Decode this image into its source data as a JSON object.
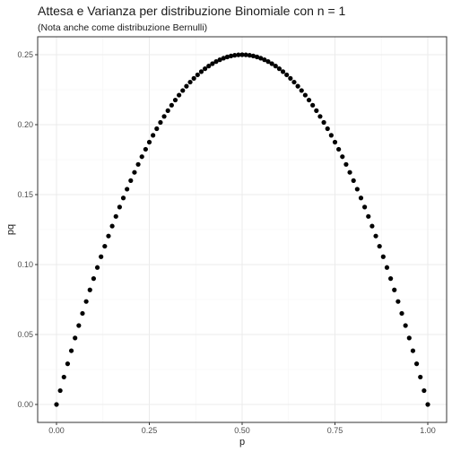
{
  "chart_data": {
    "type": "scatter",
    "title": "Attesa e Varianza per distribuzione Binomiale con n = 1",
    "subtitle": "(Nota anche come distribuzione Bernulli)",
    "xlabel": "p",
    "ylabel": "pq",
    "xlim": [
      0,
      1
    ],
    "ylim": [
      0,
      0.25
    ],
    "x_ticks": [
      "0.00",
      "0.25",
      "0.50",
      "0.75",
      "1.00"
    ],
    "y_ticks": [
      "0.00",
      "0.05",
      "0.10",
      "0.15",
      "0.20",
      "0.25"
    ],
    "grid": true,
    "point_color": "#000000",
    "series": [
      {
        "function": "p*(1-p)",
        "x": [
          0.0,
          0.01,
          0.02,
          0.03,
          0.04,
          0.05,
          0.06,
          0.07,
          0.08,
          0.09,
          0.1,
          0.11,
          0.12,
          0.13,
          0.14,
          0.15,
          0.16,
          0.17,
          0.18,
          0.19,
          0.2,
          0.21,
          0.22,
          0.23,
          0.24,
          0.25,
          0.26,
          0.27,
          0.28,
          0.29,
          0.3,
          0.31,
          0.32,
          0.33,
          0.34,
          0.35,
          0.36,
          0.37,
          0.38,
          0.39,
          0.4,
          0.41,
          0.42,
          0.43,
          0.44,
          0.45,
          0.46,
          0.47,
          0.48,
          0.49,
          0.5,
          0.51,
          0.52,
          0.53,
          0.54,
          0.55,
          0.56,
          0.57,
          0.58,
          0.59,
          0.6,
          0.61,
          0.62,
          0.63,
          0.64,
          0.65,
          0.66,
          0.67,
          0.68,
          0.69,
          0.7,
          0.71,
          0.72,
          0.73,
          0.74,
          0.75,
          0.76,
          0.77,
          0.78,
          0.79,
          0.8,
          0.81,
          0.82,
          0.83,
          0.84,
          0.85,
          0.86,
          0.87,
          0.88,
          0.89,
          0.9,
          0.91,
          0.92,
          0.93,
          0.94,
          0.95,
          0.96,
          0.97,
          0.98,
          0.99,
          1.0
        ],
        "y": [
          0.0,
          0.0099,
          0.0196,
          0.0291,
          0.0384,
          0.0475,
          0.0564,
          0.0651,
          0.0736,
          0.0819,
          0.09,
          0.0979,
          0.1056,
          0.1131,
          0.1204,
          0.1275,
          0.1344,
          0.1411,
          0.1476,
          0.1539,
          0.16,
          0.1659,
          0.1716,
          0.1771,
          0.1824,
          0.1875,
          0.1924,
          0.1971,
          0.2016,
          0.2059,
          0.21,
          0.2139,
          0.2176,
          0.2211,
          0.2244,
          0.2275,
          0.2304,
          0.2331,
          0.2356,
          0.2379,
          0.24,
          0.2419,
          0.2436,
          0.2451,
          0.2464,
          0.2475,
          0.2484,
          0.2491,
          0.2496,
          0.2499,
          0.25,
          0.2499,
          0.2496,
          0.2491,
          0.2484,
          0.2475,
          0.2464,
          0.2451,
          0.2436,
          0.2419,
          0.24,
          0.2379,
          0.2356,
          0.2331,
          0.2304,
          0.2275,
          0.2244,
          0.2211,
          0.2176,
          0.2139,
          0.21,
          0.2059,
          0.2016,
          0.1971,
          0.1924,
          0.1875,
          0.1824,
          0.1771,
          0.1716,
          0.1659,
          0.16,
          0.1539,
          0.1476,
          0.1411,
          0.1344,
          0.1275,
          0.1204,
          0.1131,
          0.1056,
          0.0979,
          0.09,
          0.0819,
          0.0736,
          0.0651,
          0.0564,
          0.0475,
          0.0384,
          0.0291,
          0.0196,
          0.0099,
          0.0
        ]
      }
    ]
  }
}
